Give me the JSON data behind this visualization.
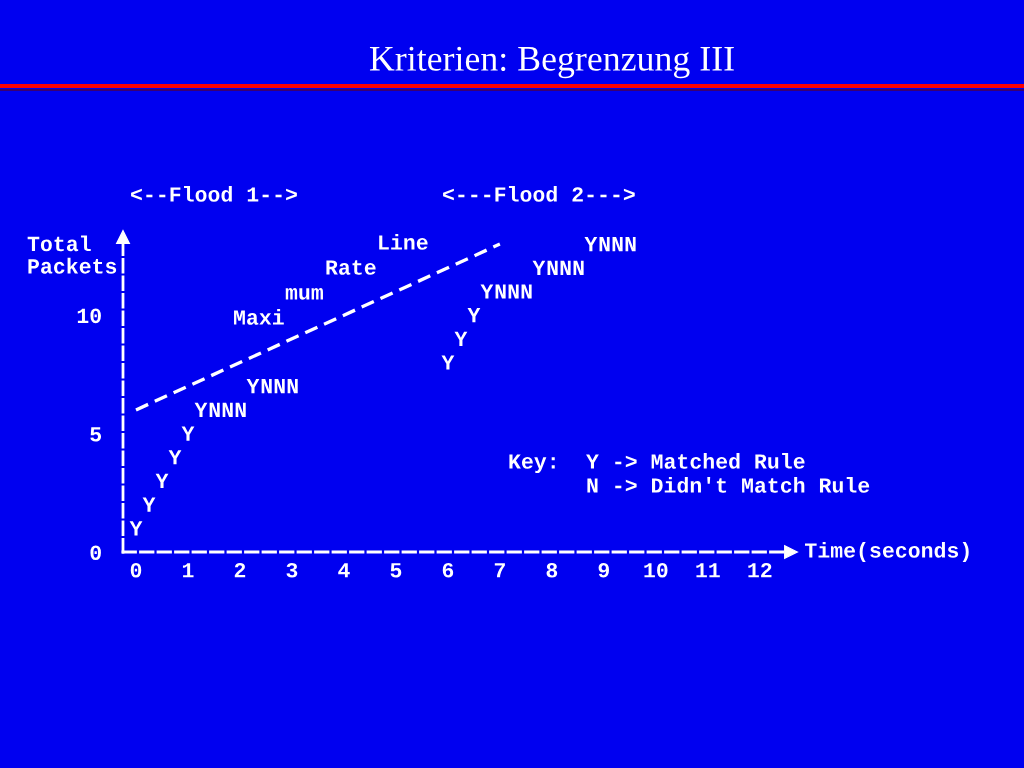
{
  "chart_data": {
    "type": "scatter",
    "title": "Kriterien: Begrenzung III",
    "xlabel": "Time(seconds)",
    "ylabel": "Total\nPackets",
    "xlim": [
      -0.25,
      12.6
    ],
    "ylim": [
      0,
      13.3
    ],
    "xticks": [
      0,
      1,
      2,
      3,
      4,
      5,
      6,
      7,
      8,
      9,
      10,
      11,
      12
    ],
    "yticks": [
      0,
      5,
      10
    ],
    "series": [
      {
        "color": "#ffffff",
        "x": [
          0,
          0.25,
          0.5,
          0.75,
          1,
          1.25,
          2.25,
          6,
          6.25,
          6.5,
          6.75,
          7.75,
          8.75
        ],
        "values": [
          1,
          2,
          3,
          4,
          5,
          6,
          7,
          8,
          9,
          10,
          11,
          12,
          13
        ]
      },
      {
        "color": "#ffffff",
        "x": [
          1.5,
          1.75,
          2,
          2.5,
          2.75,
          3,
          7,
          7.25,
          7.5,
          8,
          8.25,
          8.5,
          9,
          9.25,
          9.5
        ],
        "values": [
          6,
          6,
          6,
          7,
          7,
          7,
          11,
          11,
          11,
          12,
          12,
          12,
          13,
          13,
          13
        ]
      },
      {
        "type": "line",
        "color": "#ffffff",
        "line_style": "dashed",
        "x": [
          0,
          7
        ],
        "values": [
          6,
          13
        ]
      }
    ],
    "annotations": [
      "<--Flood 1-->",
      "<---Flood 2--->",
      "Maxi",
      "mum",
      "Rate",
      "Line",
      "Key:",
      "Y -> Matched Rule",
      "N -> Didn't Match Rule"
    ]
  }
}
